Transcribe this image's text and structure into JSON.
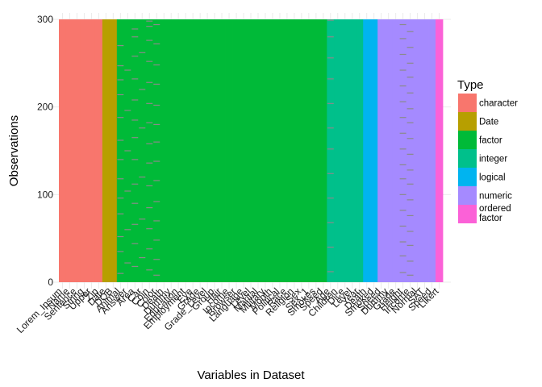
{
  "chart_data": {
    "type": "heatmap",
    "xlabel": "Variables in Dataset",
    "ylabel": "Observations",
    "ylim": [
      0,
      300
    ],
    "yticks": [
      0,
      100,
      200,
      300
    ],
    "grid": "on",
    "legend_position": "right",
    "legend": {
      "title": "Type",
      "entries": [
        {
          "label": "character",
          "color": "#F8766D"
        },
        {
          "label": "Date",
          "color": "#B79F00"
        },
        {
          "label": "factor",
          "color": "#00BA38"
        },
        {
          "label": "integer",
          "color": "#00C08B"
        },
        {
          "label": "logical",
          "color": "#00B4F0"
        },
        {
          "label": "numeric",
          "color": "#A58AFF"
        },
        {
          "label": "ordered\nfactor",
          "color": "#FB61D7"
        }
      ]
    },
    "variables": [
      {
        "name": "Lorem_Ipsum",
        "type": "character",
        "missing": []
      },
      {
        "name": "Name",
        "type": "character",
        "missing": []
      },
      {
        "name": "Sentence",
        "type": "character",
        "missing": []
      },
      {
        "name": "String",
        "type": "character",
        "missing": []
      },
      {
        "name": "Upper",
        "type": "character",
        "missing": []
      },
      {
        "name": "Zip",
        "type": "character",
        "missing": []
      },
      {
        "name": "Date",
        "type": "Date",
        "missing": []
      },
      {
        "name": "DOB",
        "type": "Date",
        "missing": []
      },
      {
        "name": "Animal",
        "type": "factor",
        "missing": [
          10,
          35,
          52,
          78,
          96,
          118,
          140,
          162,
          188,
          214,
          231,
          247,
          270
        ]
      },
      {
        "name": "Answer",
        "type": "factor",
        "missing": [
          22,
          60,
          104,
          150,
          196,
          242
        ]
      },
      {
        "name": "Area",
        "type": "factor",
        "missing": [
          18,
          44,
          66,
          90,
          112,
          140,
          165,
          185,
          208,
          232,
          258,
          280,
          289
        ]
      },
      {
        "name": "Car",
        "type": "factor",
        "missing": [
          28,
          72,
          120,
          176,
          220,
          262
        ]
      },
      {
        "name": "Coin",
        "type": "factor",
        "missing": [
          14,
          38,
          61,
          85,
          110,
          136,
          158,
          182,
          204,
          228,
          252,
          276,
          292,
          298
        ]
      },
      {
        "name": "Color",
        "type": "factor",
        "missing": [
          8,
          26,
          48,
          70,
          92,
          116,
          138,
          160,
          180,
          202,
          226,
          248,
          272,
          294
        ]
      },
      {
        "name": "Death",
        "type": "factor",
        "missing": []
      },
      {
        "name": "Dummy",
        "type": "factor",
        "missing": []
      },
      {
        "name": "Education",
        "type": "factor",
        "missing": []
      },
      {
        "name": "Employment",
        "type": "factor",
        "missing": []
      },
      {
        "name": "Eye",
        "type": "factor",
        "missing": []
      },
      {
        "name": "Grade",
        "type": "factor",
        "missing": []
      },
      {
        "name": "Grade_Level",
        "type": "factor",
        "missing": []
      },
      {
        "name": "Group",
        "type": "factor",
        "missing": []
      },
      {
        "name": "Hair",
        "type": "factor",
        "missing": []
      },
      {
        "name": "Income",
        "type": "factor",
        "missing": []
      },
      {
        "name": "Browser",
        "type": "factor",
        "missing": []
      },
      {
        "name": "Language",
        "type": "factor",
        "missing": []
      },
      {
        "name": "Level",
        "type": "factor",
        "missing": []
      },
      {
        "name": "Marital",
        "type": "factor",
        "missing": []
      },
      {
        "name": "Military",
        "type": "factor",
        "missing": []
      },
      {
        "name": "Month",
        "type": "factor",
        "missing": []
      },
      {
        "name": "Political",
        "type": "factor",
        "missing": []
      },
      {
        "name": "Race",
        "type": "factor",
        "missing": []
      },
      {
        "name": "Religion",
        "type": "factor",
        "missing": []
      },
      {
        "name": "Sex",
        "type": "factor",
        "missing": []
      },
      {
        "name": "Sex_1",
        "type": "factor",
        "missing": []
      },
      {
        "name": "Smokes",
        "type": "factor",
        "missing": []
      },
      {
        "name": "Speed",
        "type": "factor",
        "missing": []
      },
      {
        "name": "Age",
        "type": "integer",
        "missing": [
          12,
          40,
          68,
          96,
          124,
          152,
          176,
          204,
          232,
          256,
          280,
          299
        ]
      },
      {
        "name": "Children",
        "type": "integer",
        "missing": []
      },
      {
        "name": "Dice",
        "type": "integer",
        "missing": []
      },
      {
        "name": "Level",
        "type": "integer",
        "missing": []
      },
      {
        "name": "Year",
        "type": "integer",
        "missing": []
      },
      {
        "name": "Death",
        "type": "logical",
        "missing": []
      },
      {
        "name": "Smoked",
        "type": "logical",
        "missing": []
      },
      {
        "name": "Speed",
        "type": "numeric",
        "missing": []
      },
      {
        "name": "Dummy",
        "type": "numeric",
        "missing": []
      },
      {
        "name": "Grade",
        "type": "numeric",
        "missing": []
      },
      {
        "name": "Height",
        "type": "numeric",
        "missing": [
          11,
          30,
          46,
          64,
          82,
          100,
          118,
          134,
          152,
          170,
          188,
          206,
          224,
          242,
          260,
          278,
          294
        ]
      },
      {
        "name": "Income",
        "type": "numeric",
        "missing": [
          8,
          24,
          42,
          58,
          76,
          94,
          112,
          128,
          146,
          164,
          182,
          198,
          216,
          234,
          250,
          268,
          286
        ]
      },
      {
        "name": "Normal",
        "type": "numeric",
        "missing": []
      },
      {
        "name": "SAT",
        "type": "numeric",
        "missing": []
      },
      {
        "name": "Speed",
        "type": "numeric",
        "missing": []
      },
      {
        "name": "Likert",
        "type": "ordered factor",
        "missing": []
      }
    ],
    "xtick_labels": [
      "Lorem_Ipsum",
      "Name",
      "Sentence",
      "String",
      "Upper",
      "Zip",
      "Date",
      "DOB",
      "Animal",
      "Answer",
      "Area",
      "Car",
      "Coin",
      "Color",
      "Death",
      "Dummy",
      "Education",
      "Employment",
      "Eye",
      "Grade",
      "Grade_Level",
      "Group",
      "Hair",
      "Income",
      "Browser",
      "Language",
      "Level",
      "Marital",
      "Military",
      "Month",
      "Political",
      "Race",
      "Religion",
      "Sex",
      "Sex_1",
      "Smokes",
      "Speed",
      "Age",
      "Children",
      "Dice",
      "Level",
      "Year",
      "Death",
      "Smoked",
      "Speed",
      "Dummy",
      "Grade",
      "Height",
      "Income",
      "Normal",
      "SAT",
      "Speed",
      "Likert"
    ]
  }
}
